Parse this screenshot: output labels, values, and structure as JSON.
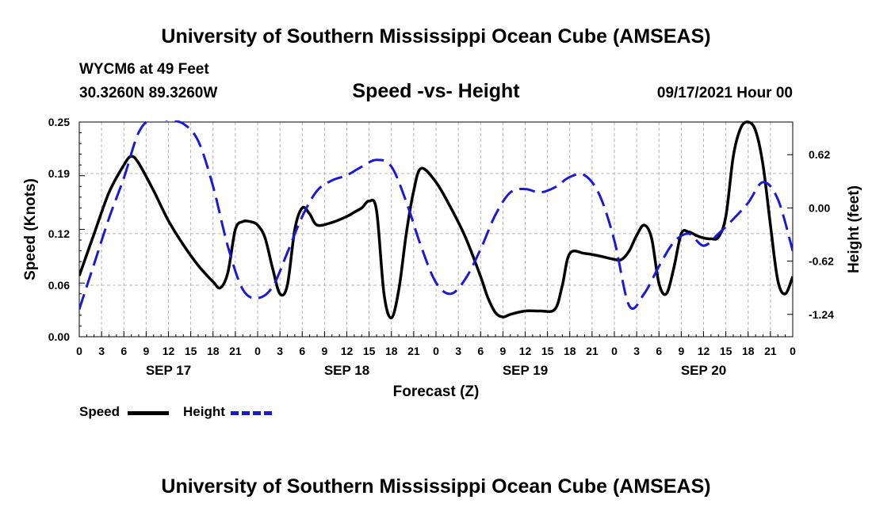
{
  "header": {
    "title_top": "University of Southern Mississippi Ocean Cube (AMSEAS)",
    "title_bottom": "University of Southern Mississippi Ocean Cube (AMSEAS)",
    "station": "WYCM6 at 49 Feet",
    "coords": "30.3260N  89.3260W",
    "timestamp": "09/17/2021 Hour 00"
  },
  "legend": {
    "speed_label": "Speed",
    "height_label": "Height"
  },
  "colors": {
    "speed": "#000000",
    "height": "#1a1ad6",
    "grid": "#b4b4b4"
  },
  "chart_data": {
    "type": "line",
    "title": "Speed -vs- Height",
    "xlabel": "Forecast (Z)",
    "ylabel": "Speed (Knots)",
    "ylabel_right": "Height (feet)",
    "x_unit": "hours since 09/17/2021 00Z",
    "xlim": [
      0,
      96
    ],
    "ylim": [
      0,
      0.25
    ],
    "ylim_right": [
      -1.5,
      1.0
    ],
    "x_ticks": [
      0,
      3,
      6,
      9,
      12,
      15,
      18,
      21,
      24,
      27,
      30,
      33,
      36,
      39,
      42,
      45,
      48,
      51,
      54,
      57,
      60,
      63,
      66,
      69,
      72,
      75,
      78,
      81,
      84,
      87,
      90,
      93,
      96
    ],
    "x_tick_labels": [
      "0",
      "3",
      "6",
      "9",
      "12",
      "15",
      "18",
      "21",
      "0",
      "3",
      "6",
      "9",
      "12",
      "15",
      "18",
      "21",
      "0",
      "3",
      "6",
      "9",
      "12",
      "15",
      "18",
      "21",
      "0",
      "3",
      "6",
      "9",
      "12",
      "15",
      "18",
      "21",
      "0"
    ],
    "day_labels": [
      {
        "x": 12,
        "label": "SEP 17"
      },
      {
        "x": 36,
        "label": "SEP 18"
      },
      {
        "x": 60,
        "label": "SEP 19"
      },
      {
        "x": 84,
        "label": "SEP 20"
      }
    ],
    "y_ticks": [
      0.0,
      0.06,
      0.12,
      0.19,
      0.25
    ],
    "y_tick_labels": [
      "0.00",
      "0.06",
      "0.12",
      "0.19",
      "0.25"
    ],
    "y2_ticks": [
      -1.24,
      -0.62,
      0.0,
      0.62
    ],
    "y2_tick_labels": [
      "-1.24",
      "-0.62",
      "0.00",
      "0.62"
    ],
    "grid": true,
    "series": [
      {
        "name": "Speed",
        "axis": "left",
        "style": "solid",
        "x": [
          0,
          2,
          4,
          6,
          7,
          8,
          10,
          12,
          14,
          16,
          18,
          19,
          20,
          21,
          22,
          23,
          24,
          25,
          26,
          27,
          28,
          29,
          30,
          31,
          32,
          34,
          36,
          37,
          38,
          39,
          40,
          41,
          42,
          43,
          44,
          45,
          46,
          48,
          50,
          52,
          54,
          55,
          56,
          57,
          58,
          60,
          62,
          64,
          65,
          66,
          68,
          70,
          72,
          73,
          74,
          75,
          76,
          77,
          78,
          79,
          80,
          81,
          82,
          83,
          84,
          85,
          86,
          87,
          88,
          89,
          90,
          91,
          92,
          93,
          94,
          95,
          96
        ],
        "values": [
          0.071,
          0.12,
          0.168,
          0.2,
          0.21,
          0.202,
          0.17,
          0.135,
          0.107,
          0.083,
          0.064,
          0.057,
          0.075,
          0.125,
          0.134,
          0.134,
          0.13,
          0.115,
          0.08,
          0.05,
          0.06,
          0.125,
          0.15,
          0.143,
          0.13,
          0.133,
          0.14,
          0.145,
          0.15,
          0.158,
          0.147,
          0.05,
          0.022,
          0.055,
          0.12,
          0.17,
          0.196,
          0.18,
          0.15,
          0.115,
          0.07,
          0.045,
          0.028,
          0.023,
          0.026,
          0.03,
          0.03,
          0.032,
          0.06,
          0.097,
          0.097,
          0.094,
          0.09,
          0.09,
          0.1,
          0.118,
          0.13,
          0.115,
          0.062,
          0.05,
          0.08,
          0.12,
          0.122,
          0.118,
          0.115,
          0.114,
          0.116,
          0.14,
          0.21,
          0.243,
          0.25,
          0.24,
          0.2,
          0.13,
          0.065,
          0.05,
          0.07
        ]
      },
      {
        "name": "Height",
        "axis": "right",
        "style": "dashed",
        "x": [
          0,
          2,
          4,
          6,
          8,
          10,
          12,
          14,
          16,
          18,
          20,
          22,
          24,
          26,
          28,
          30,
          32,
          34,
          36,
          38,
          40,
          42,
          44,
          46,
          48,
          50,
          52,
          54,
          56,
          58,
          60,
          62,
          64,
          66,
          68,
          70,
          72,
          74,
          76,
          78,
          80,
          82,
          84,
          86,
          88,
          90,
          92,
          94,
          96
        ],
        "values": [
          -1.18,
          -0.65,
          -0.12,
          0.35,
          0.88,
          1.05,
          1.02,
          0.98,
          0.78,
          0.25,
          -0.45,
          -0.95,
          -1.05,
          -0.92,
          -0.52,
          -0.1,
          0.2,
          0.32,
          0.38,
          0.48,
          0.56,
          0.48,
          0.07,
          -0.45,
          -0.87,
          -1.0,
          -0.82,
          -0.48,
          -0.08,
          0.18,
          0.22,
          0.18,
          0.24,
          0.36,
          0.38,
          0.15,
          -0.38,
          -1.14,
          -1.0,
          -0.68,
          -0.4,
          -0.3,
          -0.44,
          -0.3,
          -0.13,
          0.06,
          0.3,
          0.1,
          -0.5
        ]
      }
    ]
  }
}
